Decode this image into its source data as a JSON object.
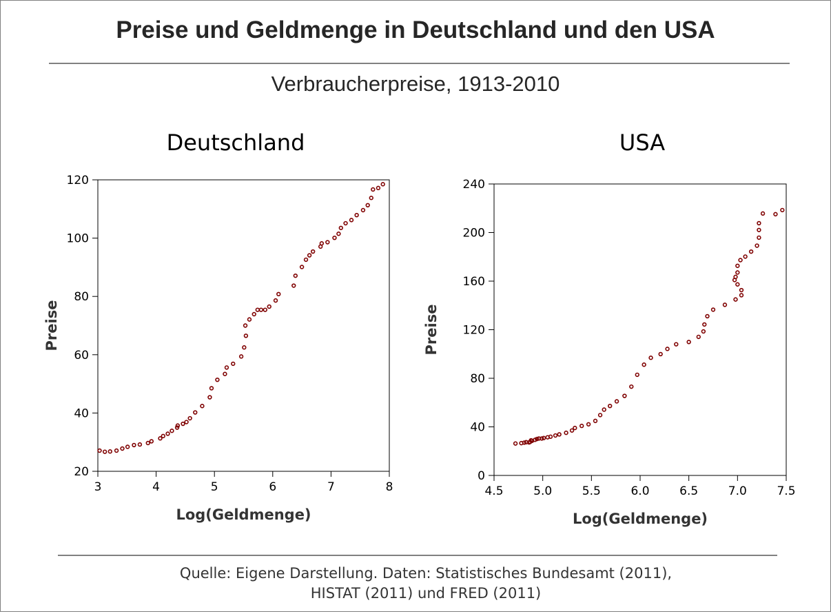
{
  "title": "Preise und Geldmenge in Deutschland und den USA",
  "subtitle": "Verbraucherpreise,  1913-2010",
  "source_line1": "Quelle: Eigene Darstellung. Daten: Statistisches Bundesamt (2011),",
  "source_line2": "HISTAT (2011) und FRED (2011)",
  "marker_color": "#7f0000",
  "chart_data": [
    {
      "type": "scatter",
      "title": "Deutschland",
      "xlabel": "Log(Geldmenge)",
      "ylabel": "Preise",
      "xlim": [
        3,
        8
      ],
      "ylim": [
        20,
        120
      ],
      "xticks": [
        "3",
        "4",
        "5",
        "6",
        "7",
        "8"
      ],
      "yticks": [
        "20",
        "40",
        "60",
        "80",
        "100",
        "120"
      ],
      "grid": false,
      "points": [
        [
          3.03,
          27.1
        ],
        [
          3.12,
          26.7
        ],
        [
          3.21,
          26.8
        ],
        [
          3.32,
          27.1
        ],
        [
          3.42,
          27.8
        ],
        [
          3.51,
          28.4
        ],
        [
          3.62,
          29.0
        ],
        [
          3.72,
          29.2
        ],
        [
          3.86,
          29.7
        ],
        [
          3.92,
          30.3
        ],
        [
          4.07,
          31.3
        ],
        [
          4.12,
          32.1
        ],
        [
          4.2,
          32.9
        ],
        [
          4.27,
          33.9
        ],
        [
          4.36,
          35.0
        ],
        [
          4.37,
          35.7
        ],
        [
          4.46,
          36.3
        ],
        [
          4.52,
          36.9
        ],
        [
          4.58,
          38.2
        ],
        [
          4.67,
          40.2
        ],
        [
          4.79,
          42.4
        ],
        [
          4.92,
          45.4
        ],
        [
          4.95,
          48.5
        ],
        [
          5.05,
          51.4
        ],
        [
          5.18,
          53.4
        ],
        [
          5.21,
          55.6
        ],
        [
          5.32,
          56.9
        ],
        [
          5.46,
          59.4
        ],
        [
          5.51,
          62.5
        ],
        [
          5.54,
          66.5
        ],
        [
          5.53,
          70.0
        ],
        [
          5.6,
          72.1
        ],
        [
          5.68,
          73.9
        ],
        [
          5.74,
          75.4
        ],
        [
          5.8,
          75.4
        ],
        [
          5.87,
          75.4
        ],
        [
          5.94,
          76.5
        ],
        [
          6.05,
          78.6
        ],
        [
          6.1,
          80.8
        ],
        [
          6.36,
          83.7
        ],
        [
          6.39,
          87.1
        ],
        [
          6.5,
          90.1
        ],
        [
          6.57,
          92.6
        ],
        [
          6.63,
          94.1
        ],
        [
          6.69,
          95.4
        ],
        [
          6.82,
          97.1
        ],
        [
          6.84,
          98.2
        ],
        [
          6.94,
          98.6
        ],
        [
          7.06,
          100.1
        ],
        [
          7.13,
          101.5
        ],
        [
          7.17,
          103.5
        ],
        [
          7.25,
          105.1
        ],
        [
          7.35,
          106.2
        ],
        [
          7.44,
          107.9
        ],
        [
          7.55,
          109.6
        ],
        [
          7.63,
          111.3
        ],
        [
          7.69,
          113.8
        ],
        [
          7.72,
          116.7
        ],
        [
          7.81,
          117.2
        ],
        [
          7.89,
          118.5
        ]
      ]
    },
    {
      "type": "scatter",
      "title": "USA",
      "xlabel": "Log(Geldmenge)",
      "ylabel": "Preise",
      "xlim": [
        4.5,
        7.5
      ],
      "ylim": [
        0,
        240
      ],
      "xticks": [
        "4.5",
        "5.0",
        "5.5",
        "6.0",
        "6.5",
        "7.0",
        "7.5"
      ],
      "yticks": [
        "0",
        "40",
        "80",
        "120",
        "160",
        "200",
        "240"
      ],
      "grid": false,
      "points": [
        [
          4.72,
          26.3
        ],
        [
          4.78,
          26.6
        ],
        [
          4.81,
          27.0
        ],
        [
          4.83,
          27.4
        ],
        [
          4.86,
          27.2
        ],
        [
          4.87,
          27.6
        ],
        [
          4.88,
          28.9
        ],
        [
          4.89,
          28.5
        ],
        [
          4.92,
          29.3
        ],
        [
          4.94,
          30.0
        ],
        [
          4.96,
          30.4
        ],
        [
          4.99,
          30.4
        ],
        [
          5.01,
          30.8
        ],
        [
          5.05,
          31.4
        ],
        [
          5.08,
          31.9
        ],
        [
          5.13,
          32.9
        ],
        [
          5.17,
          33.8
        ],
        [
          5.24,
          35.1
        ],
        [
          5.3,
          37.0
        ],
        [
          5.33,
          39.1
        ],
        [
          5.4,
          40.8
        ],
        [
          5.47,
          42.1
        ],
        [
          5.54,
          44.9
        ],
        [
          5.59,
          49.7
        ],
        [
          5.63,
          54.2
        ],
        [
          5.69,
          57.2
        ],
        [
          5.76,
          61.0
        ],
        [
          5.84,
          65.5
        ],
        [
          5.91,
          73.1
        ],
        [
          5.97,
          82.9
        ],
        [
          6.04,
          91.2
        ],
        [
          6.11,
          96.9
        ],
        [
          6.21,
          99.9
        ],
        [
          6.28,
          104.2
        ],
        [
          6.37,
          108.0
        ],
        [
          6.5,
          109.9
        ],
        [
          6.6,
          114.1
        ],
        [
          6.65,
          118.6
        ],
        [
          6.66,
          124.3
        ],
        [
          6.69,
          131.1
        ],
        [
          6.75,
          136.5
        ],
        [
          6.87,
          140.5
        ],
        [
          6.98,
          144.9
        ],
        [
          7.04,
          148.4
        ],
        [
          7.04,
          152.6
        ],
        [
          7.0,
          157.3
        ],
        [
          6.97,
          160.9
        ],
        [
          6.98,
          163.5
        ],
        [
          7.0,
          167.1
        ],
        [
          7.0,
          172.6
        ],
        [
          7.03,
          177.3
        ],
        [
          7.08,
          180.2
        ],
        [
          7.14,
          184.3
        ],
        [
          7.2,
          189.2
        ],
        [
          7.22,
          195.8
        ],
        [
          7.22,
          202.1
        ],
        [
          7.22,
          207.7
        ],
        [
          7.26,
          215.7
        ],
        [
          7.39,
          215.1
        ],
        [
          7.46,
          218.5
        ]
      ]
    }
  ]
}
